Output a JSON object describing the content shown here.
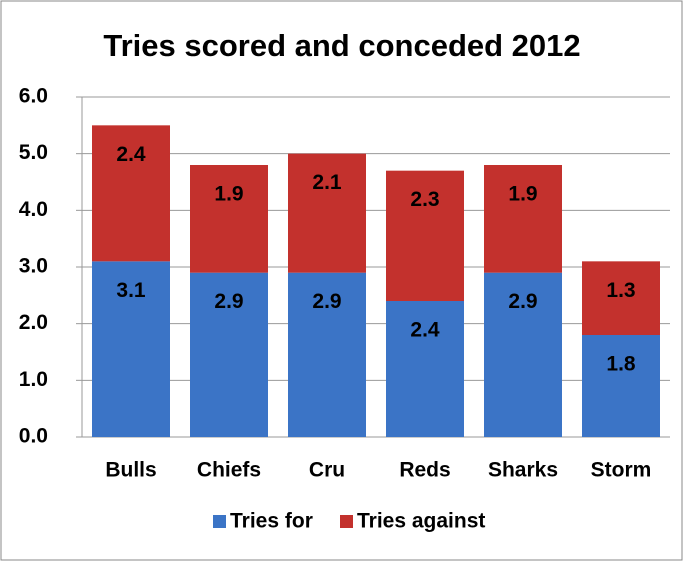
{
  "chart_data": {
    "type": "stacked_bar",
    "title": "Tries scored and conceded 2012",
    "categories": [
      "Bulls",
      "Chiefs",
      "Cru",
      "Reds",
      "Sharks",
      "Storm"
    ],
    "series": [
      {
        "name": "Tries for",
        "color": "#3b74c6",
        "values": [
          3.1,
          2.9,
          2.9,
          2.4,
          2.9,
          1.8
        ]
      },
      {
        "name": "Tries against",
        "color": "#c3312d",
        "values": [
          2.4,
          1.9,
          2.1,
          2.3,
          1.9,
          1.3
        ]
      }
    ],
    "ylim": [
      0,
      6
    ],
    "yticks": [
      {
        "value": 0,
        "label": "0.0"
      },
      {
        "value": 1,
        "label": "1.0"
      },
      {
        "value": 2,
        "label": "2.0"
      },
      {
        "value": 3,
        "label": "3.0"
      },
      {
        "value": 4,
        "label": "4.0"
      },
      {
        "value": 5,
        "label": "5.0"
      },
      {
        "value": 6,
        "label": "6.0"
      }
    ],
    "grid": true,
    "legend": "bottom"
  }
}
